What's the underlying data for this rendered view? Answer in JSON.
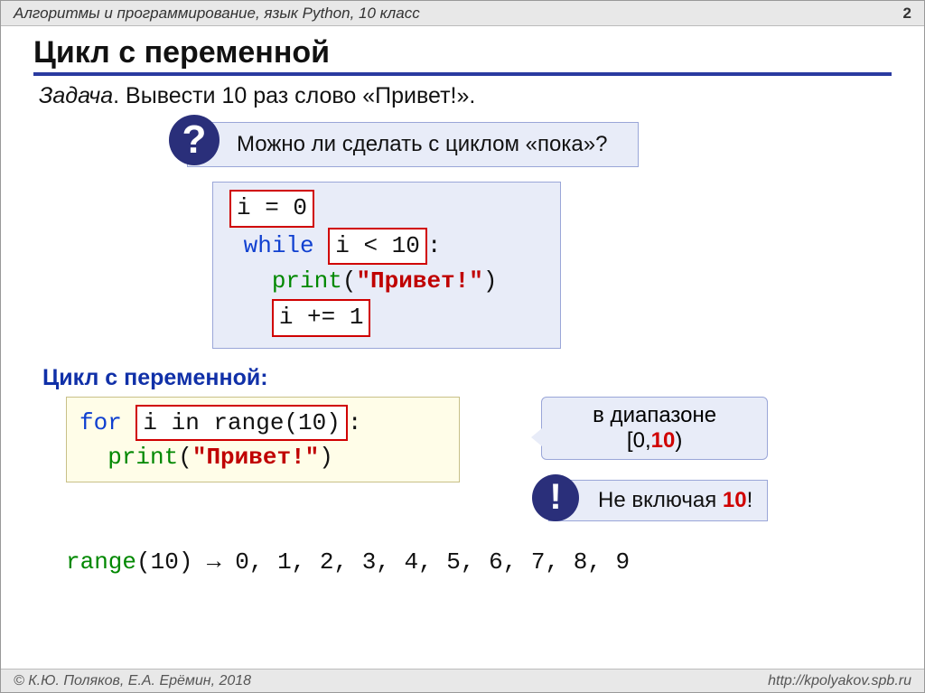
{
  "header": {
    "title": "Алгоритмы и программирование, язык Python, 10 класс",
    "page": "2"
  },
  "slide_title": "Цикл с переменной",
  "task": {
    "label": "Задача",
    "text": ". Вывести 10 раз слово «Привет!»."
  },
  "question": {
    "mark": "?",
    "text": "Можно ли сделать с циклом «пока»?"
  },
  "code1": {
    "l1": "i = 0",
    "l2_kw": "while",
    "l2_cond": "i < 10",
    "l2_colon": ":",
    "l3_fn": "print",
    "l3_open": "(",
    "l3_str": "\"Привет!\"",
    "l3_close": ")",
    "l4": "i += 1"
  },
  "subheading": "Цикл с переменной:",
  "code2": {
    "l1_for": "for",
    "l1_body": "i in range(10)",
    "l1_colon": ":",
    "l2_fn": "print",
    "l2_open": "(",
    "l2_str": "\"Привет!\"",
    "l2_close": ")"
  },
  "range_note": {
    "line1": "в диапазоне",
    "line2a": "[0,",
    "line2b": "10",
    "line2c": ")"
  },
  "excl": {
    "mark": "!",
    "text_a": "Не включая ",
    "text_b": "10",
    "text_c": "!"
  },
  "range_line": {
    "fn": "range",
    "arg_open": "(",
    "arg": "10",
    "arg_close": ")",
    "arrow": " → ",
    "seq": "0, 1, 2, 3, 4, 5, 6, 7, 8, 9"
  },
  "footer": {
    "left": "© К.Ю. Поляков, Е.А. Ерёмин, 2018",
    "right": "http://kpolyakov.spb.ru"
  },
  "colors": {
    "box_bg": "#e8ecf8",
    "box_border": "#9aa6d8",
    "yellow_bg": "#fffde8",
    "red": "#d00000",
    "blue_kw": "#1040d0",
    "green": "#008800",
    "circle": "#2a2f7a",
    "title_underline": "#2a3aa0"
  }
}
